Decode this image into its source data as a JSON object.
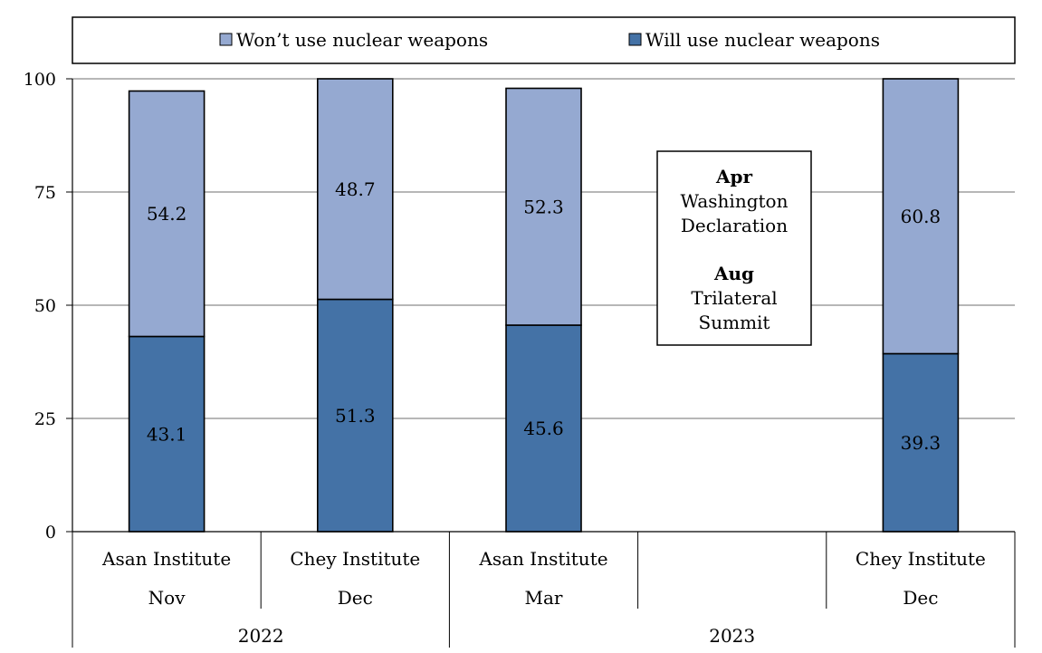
{
  "chart_data": {
    "type": "bar",
    "stacked": true,
    "legend_position": "top",
    "grid": true,
    "ylim": [
      0,
      100
    ],
    "yticks": [
      0,
      25,
      50,
      75,
      100
    ],
    "categories": [
      {
        "label": "Asan Institute",
        "month": "Nov",
        "year": "2022"
      },
      {
        "label": "Chey Institute",
        "month": "Dec",
        "year": "2022"
      },
      {
        "label": "Asan Institute",
        "month": "Mar",
        "year": "2023"
      },
      {
        "label": "",
        "month": "",
        "year": "2023"
      },
      {
        "label": "Chey Institute",
        "month": "Dec",
        "year": "2023"
      }
    ],
    "years": [
      {
        "label": "2022",
        "span": [
          0,
          1
        ]
      },
      {
        "label": "2023",
        "span": [
          2,
          4
        ]
      }
    ],
    "series": [
      {
        "name": "Will use nuclear weapons",
        "color": "#4472a6",
        "values": [
          43.1,
          51.3,
          45.6,
          null,
          39.3
        ]
      },
      {
        "name": "Won’t use nuclear weapons",
        "color": "#95a9d1",
        "values": [
          54.2,
          48.7,
          52.3,
          null,
          60.8
        ]
      }
    ],
    "legend_order": [
      "Won’t use nuclear weapons",
      "Will use nuclear weapons"
    ],
    "annotation": {
      "lines": [
        {
          "text": "Apr",
          "bold": true
        },
        {
          "text": "Washington",
          "bold": false
        },
        {
          "text": "Declaration",
          "bold": false
        },
        {
          "text": "",
          "bold": false
        },
        {
          "text": "Aug",
          "bold": true
        },
        {
          "text": "Trilateral",
          "bold": false
        },
        {
          "text": "Summit",
          "bold": false
        }
      ]
    }
  }
}
